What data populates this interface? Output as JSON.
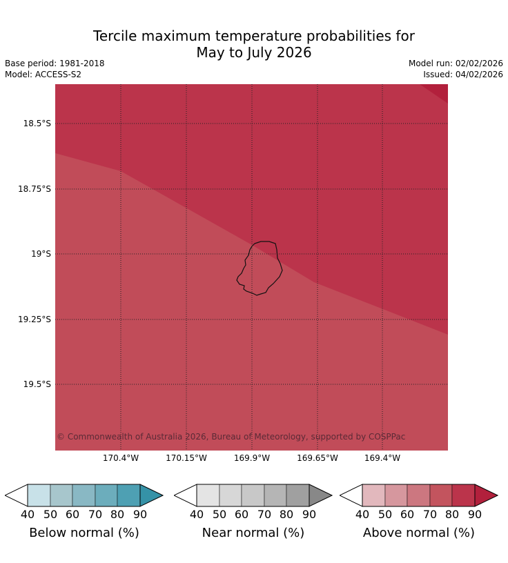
{
  "title": {
    "line1": "Tercile maximum temperature probabilities for",
    "line2": "May to July 2026"
  },
  "info": {
    "base_period": "Base period: 1981-2018",
    "model": "Model: ACCESS-S2",
    "model_run": "Model run: 02/02/2026",
    "issued": "Issued: 04/02/2026"
  },
  "map": {
    "latitude_labels": [
      "18.5°S",
      "18.75°S",
      "19°S",
      "19.25°S",
      "19.5°S"
    ],
    "longitude_labels": [
      "170.4°W",
      "170.15°W",
      "169.9°W",
      "169.65°W",
      "169.4°W"
    ],
    "copyright": "© Commonwealth of Australia 2026, Bureau of Meteorology, supported by COSPPac",
    "colors": {
      "band_80_90": "#bb344b",
      "band_70_80": "#c14c59",
      "band_90_plus": "#b2203c"
    }
  },
  "legends": [
    {
      "title": "Below normal (%)",
      "ticks": [
        "40",
        "50",
        "60",
        "70",
        "80",
        "90"
      ],
      "colors": [
        "#c8e1e8",
        "#a7c6cc",
        "#89b8c4",
        "#6cadbc",
        "#4ea0b3",
        "#3592a7"
      ]
    },
    {
      "title": "Near normal (%)",
      "ticks": [
        "40",
        "50",
        "60",
        "70",
        "80",
        "90"
      ],
      "colors": [
        "#e4e4e4",
        "#d7d7d7",
        "#c8c8c8",
        "#b5b5b5",
        "#a0a0a0",
        "#888888"
      ]
    },
    {
      "title": "Above normal (%)",
      "ticks": [
        "40",
        "50",
        "60",
        "70",
        "80",
        "90"
      ],
      "colors": [
        "#e2b8bd",
        "#d6979e",
        "#cc7780",
        "#c3545e",
        "#bb344b",
        "#b2203c"
      ]
    }
  ]
}
